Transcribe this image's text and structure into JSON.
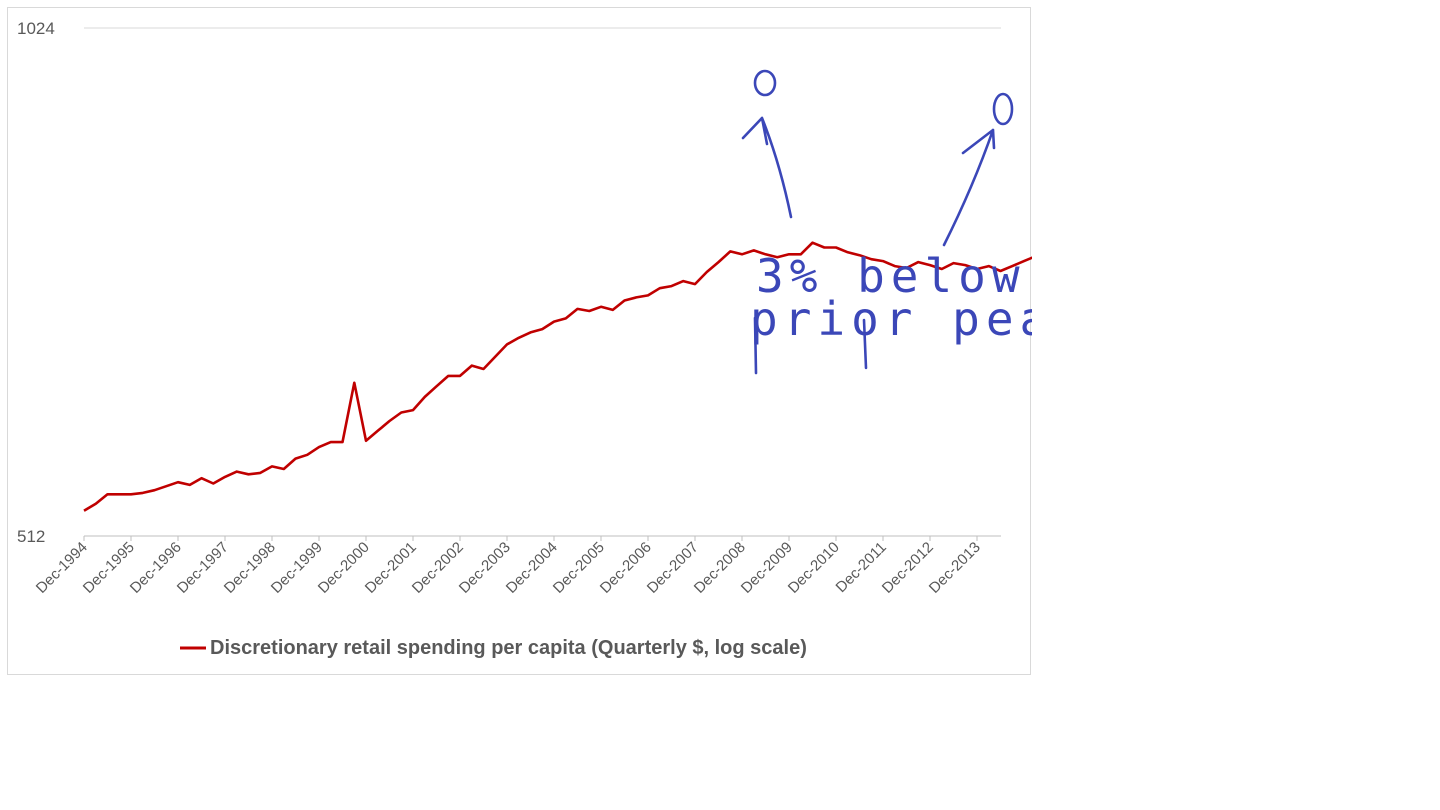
{
  "chart_data": {
    "type": "line",
    "yscale": "log2",
    "ylim": [
      512,
      1024
    ],
    "yticks": [
      "1024",
      "512"
    ],
    "xticks": [
      "Dec-1994",
      "Dec-1995",
      "Dec-1996",
      "Dec-1997",
      "Dec-1998",
      "Dec-1999",
      "Dec-2000",
      "Dec-2001",
      "Dec-2002",
      "Dec-2003",
      "Dec-2004",
      "Dec-2005",
      "Dec-2006",
      "Dec-2007",
      "Dec-2008",
      "Dec-2009",
      "Dec-2010",
      "Dec-2011",
      "Dec-2012",
      "Dec-2013"
    ],
    "legend": {
      "position": "bottom"
    },
    "grid": {
      "horizontal": true,
      "vertical": false
    },
    "colors": {
      "series": "#c00000",
      "annotation": "#3b47b8"
    },
    "series": [
      {
        "name": "Discretionary retail spending per capita (Quarterly $, log scale)",
        "start": "Dec-1994",
        "frequency": "quarterly",
        "values": [
          530,
          535,
          542,
          542,
          542,
          543,
          545,
          548,
          551,
          549,
          554,
          550,
          555,
          559,
          557,
          558,
          563,
          561,
          569,
          572,
          578,
          582,
          582,
          631,
          583,
          591,
          599,
          606,
          608,
          619,
          628,
          637,
          637,
          646,
          643,
          654,
          665,
          671,
          676,
          679,
          686,
          689,
          698,
          696,
          700,
          697,
          706,
          709,
          711,
          718,
          720,
          725,
          722,
          734,
          744,
          755,
          752,
          756,
          752,
          749,
          752,
          752,
          764,
          759,
          759,
          754,
          751,
          747,
          745,
          740,
          738,
          744,
          741,
          737,
          743,
          741,
          737,
          740,
          735,
          740,
          745,
          750,
          747
        ]
      }
    ],
    "annotations": [
      {
        "type": "handwritten-text",
        "lines": [
          "3% below",
          "prior peak"
        ]
      },
      {
        "type": "handwritten-circle",
        "at": "Sep-2008 peak"
      },
      {
        "type": "handwritten-circle",
        "at": "Dec-2013"
      }
    ]
  }
}
